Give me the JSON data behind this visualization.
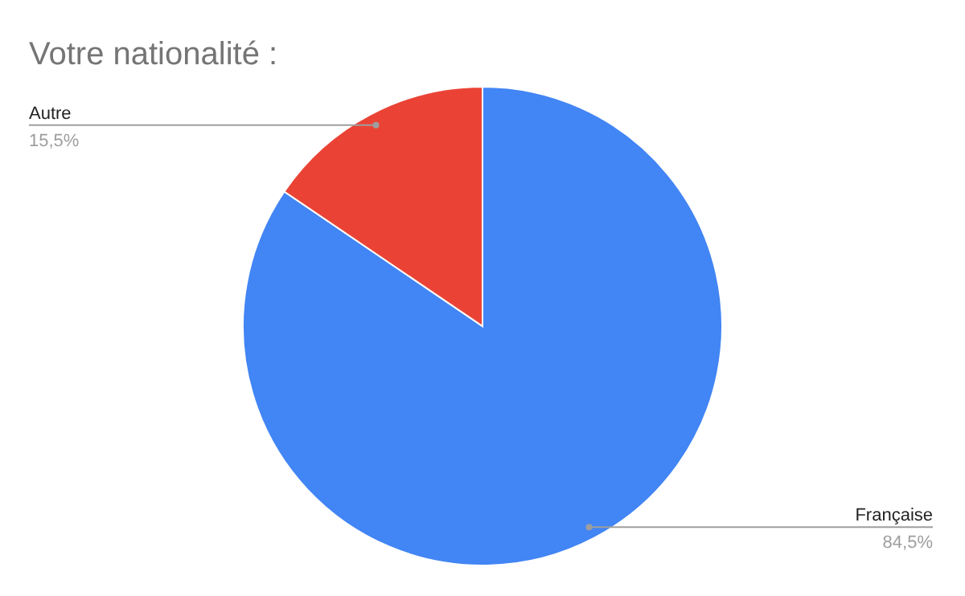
{
  "chart_data": {
    "type": "pie",
    "title": "Votre nationalité :",
    "categories": [
      "Française",
      "Autre"
    ],
    "values": [
      84.5,
      15.5
    ],
    "value_labels": [
      "84,5%",
      "15,5%"
    ],
    "colors": [
      "#4285f4",
      "#ea4335"
    ]
  }
}
